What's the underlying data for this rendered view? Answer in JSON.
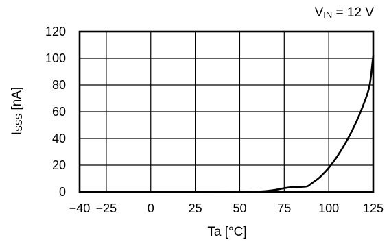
{
  "chart_data": {
    "type": "line",
    "annotation": {
      "prefix": "V",
      "subscript": "IN",
      "suffix": " = 12 V"
    },
    "xlabel": "Ta [°C]",
    "ylabel": {
      "main": "I",
      "subscript": "SSS",
      "unit": " [nA]"
    },
    "xlim": [
      -40,
      125
    ],
    "ylim": [
      0,
      120
    ],
    "x_gridlines": [
      -25,
      0,
      25,
      50,
      75,
      100
    ],
    "x_ticks": [
      {
        "value": -40,
        "label": "−40"
      },
      {
        "value": -25,
        "label": "−25"
      },
      {
        "value": 0,
        "label": "0"
      },
      {
        "value": 25,
        "label": "25"
      },
      {
        "value": 50,
        "label": "50"
      },
      {
        "value": 75,
        "label": "75"
      },
      {
        "value": 100,
        "label": "100"
      },
      {
        "value": 125,
        "label": "125"
      }
    ],
    "y_ticks": [
      {
        "value": 0,
        "label": "0"
      },
      {
        "value": 20,
        "label": "20"
      },
      {
        "value": 40,
        "label": "40"
      },
      {
        "value": 60,
        "label": "60"
      },
      {
        "value": 80,
        "label": "80"
      },
      {
        "value": 100,
        "label": "100"
      },
      {
        "value": 120,
        "label": "120"
      }
    ],
    "grid": true,
    "series": [
      {
        "color": "#000000",
        "x": [
          -40,
          0,
          40,
          60,
          65,
          70,
          75,
          80,
          85,
          88,
          90,
          95,
          100,
          105,
          110,
          115,
          120,
          123,
          125
        ],
        "y": [
          0,
          0,
          0,
          0.3,
          0.7,
          1.5,
          2.8,
          3.6,
          3.8,
          4.2,
          6,
          11,
          18,
          27,
          38,
          51,
          67,
          80,
          102
        ]
      }
    ]
  }
}
